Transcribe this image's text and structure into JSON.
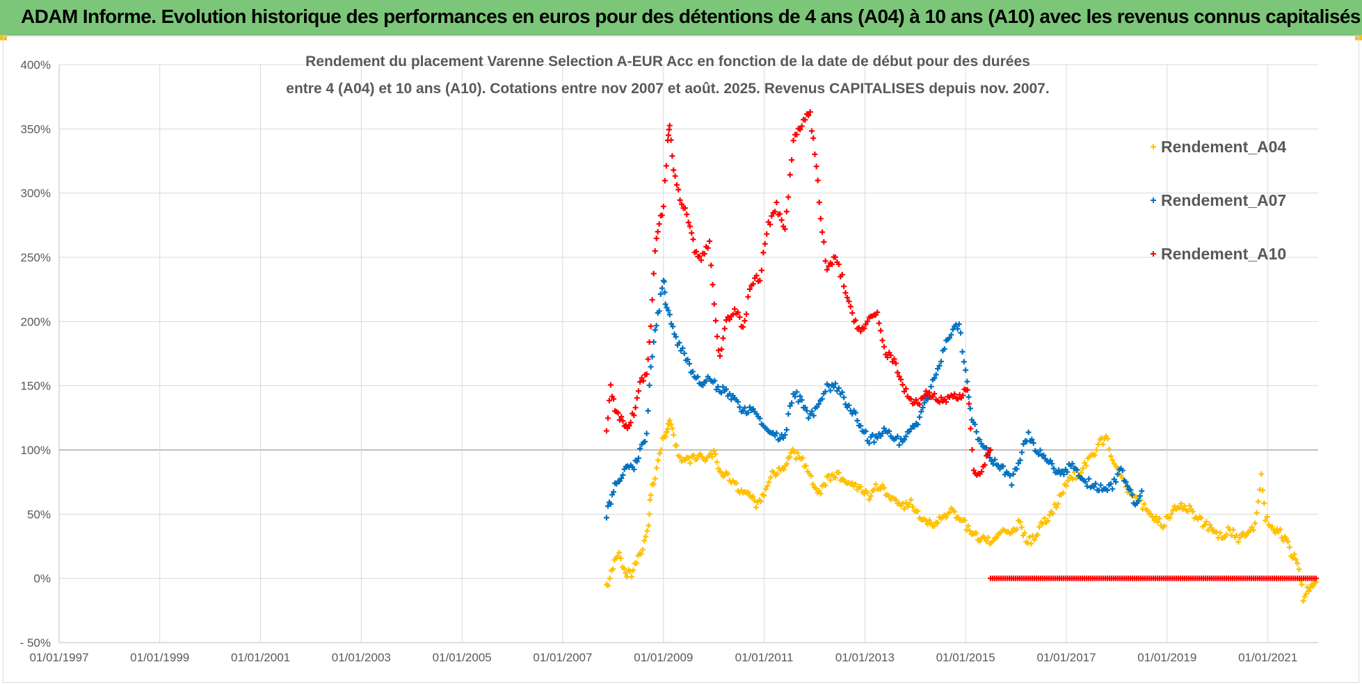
{
  "header": {
    "title": "ADAM Informe. Evolution historique des performances en euros pour des détentions de 4 ans (A04) à 10 ans (A10) avec les revenus connus capitalisés"
  },
  "chart_data": {
    "type": "scatter",
    "title_line1": "Rendement du placement Varenne Selection A-EUR Acc en fonction de la date de début pour des durées",
    "title_line2": "entre 4 (A04) et 10 ans (A10). Cotations entre nov 2007 et août. 2025. Revenus CAPITALISES depuis nov. 2007.",
    "xlim": [
      "1997-01-01",
      "2022-01-01"
    ],
    "ylim": [
      -50,
      400
    ],
    "y_tick_values": [
      -50,
      0,
      50,
      100,
      150,
      200,
      250,
      300,
      350,
      400
    ],
    "y_tick_labels": [
      "- 50%",
      "0%",
      "50%",
      "100%",
      "150%",
      "200%",
      "250%",
      "300%",
      "350%",
      "400%"
    ],
    "x_tick_values": [
      "1997-01-01",
      "1999-01-01",
      "2001-01-01",
      "2003-01-01",
      "2005-01-01",
      "2007-01-01",
      "2009-01-01",
      "2011-01-01",
      "2013-01-01",
      "2015-01-01",
      "2017-01-01",
      "2019-01-01",
      "2021-01-01"
    ],
    "x_tick_labels": [
      "01/01/1997",
      "01/01/1999",
      "01/01/2001",
      "01/01/2003",
      "01/01/2005",
      "01/01/2007",
      "01/01/2009",
      "01/01/2011",
      "01/01/2013",
      "01/01/2015",
      "01/01/2017",
      "01/01/2019",
      "01/01/2021"
    ],
    "grid": true,
    "legend_position": "right",
    "marker": "+",
    "series": [
      {
        "name": "Rendement_A04",
        "color": "#ffc000",
        "points": [
          [
            "2007-11-15",
            -8
          ],
          [
            "2008-01-01",
            10
          ],
          [
            "2008-02-15",
            18
          ],
          [
            "2008-04-01",
            5
          ],
          [
            "2008-05-15",
            2
          ],
          [
            "2008-07-01",
            15
          ],
          [
            "2008-08-15",
            28
          ],
          [
            "2008-09-15",
            40
          ],
          [
            "2008-10-01",
            68
          ],
          [
            "2008-11-01",
            80
          ],
          [
            "2008-12-15",
            103
          ],
          [
            "2009-01-15",
            112
          ],
          [
            "2009-02-01",
            118
          ],
          [
            "2009-02-15",
            125
          ],
          [
            "2009-03-15",
            110
          ],
          [
            "2009-05-01",
            95
          ],
          [
            "2009-07-01",
            92
          ],
          [
            "2009-09-01",
            95
          ],
          [
            "2009-11-01",
            92
          ],
          [
            "2010-01-01",
            98
          ],
          [
            "2010-02-15",
            85
          ],
          [
            "2010-04-01",
            80
          ],
          [
            "2010-06-01",
            72
          ],
          [
            "2010-08-01",
            68
          ],
          [
            "2010-10-01",
            62
          ],
          [
            "2010-11-15",
            57
          ],
          [
            "2011-01-01",
            65
          ],
          [
            "2011-03-01",
            80
          ],
          [
            "2011-05-01",
            84
          ],
          [
            "2011-06-15",
            90
          ],
          [
            "2011-07-15",
            100
          ],
          [
            "2011-09-01",
            95
          ],
          [
            "2011-11-01",
            88
          ],
          [
            "2012-01-01",
            70
          ],
          [
            "2012-02-15",
            68
          ],
          [
            "2012-04-01",
            78
          ],
          [
            "2012-06-01",
            80
          ],
          [
            "2012-08-01",
            78
          ],
          [
            "2012-10-01",
            75
          ],
          [
            "2012-12-01",
            70
          ],
          [
            "2013-02-01",
            62
          ],
          [
            "2013-04-01",
            72
          ],
          [
            "2013-06-01",
            68
          ],
          [
            "2013-08-01",
            60
          ],
          [
            "2013-10-01",
            55
          ],
          [
            "2013-12-01",
            58
          ],
          [
            "2014-02-01",
            50
          ],
          [
            "2014-04-01",
            45
          ],
          [
            "2014-06-01",
            42
          ],
          [
            "2014-08-01",
            50
          ],
          [
            "2014-10-01",
            52
          ],
          [
            "2014-12-01",
            45
          ],
          [
            "2015-02-01",
            38
          ],
          [
            "2015-04-01",
            32
          ],
          [
            "2015-06-01",
            28
          ],
          [
            "2015-08-01",
            32
          ],
          [
            "2015-10-01",
            38
          ],
          [
            "2015-12-01",
            35
          ],
          [
            "2016-02-01",
            45
          ],
          [
            "2016-03-15",
            28
          ],
          [
            "2016-05-01",
            30
          ],
          [
            "2016-07-01",
            42
          ],
          [
            "2016-09-01",
            48
          ],
          [
            "2016-11-01",
            60
          ],
          [
            "2017-01-01",
            75
          ],
          [
            "2017-03-01",
            80
          ],
          [
            "2017-05-01",
            85
          ],
          [
            "2017-07-01",
            95
          ],
          [
            "2017-09-01",
            105
          ],
          [
            "2017-10-15",
            110
          ],
          [
            "2017-12-01",
            92
          ],
          [
            "2018-02-01",
            78
          ],
          [
            "2018-04-01",
            68
          ],
          [
            "2018-06-01",
            60
          ],
          [
            "2018-08-01",
            55
          ],
          [
            "2018-10-01",
            48
          ],
          [
            "2018-12-01",
            42
          ],
          [
            "2019-02-01",
            52
          ],
          [
            "2019-04-01",
            58
          ],
          [
            "2019-06-01",
            55
          ],
          [
            "2019-08-01",
            48
          ],
          [
            "2019-10-01",
            42
          ],
          [
            "2019-12-01",
            38
          ],
          [
            "2020-02-01",
            32
          ],
          [
            "2020-04-01",
            38
          ],
          [
            "2020-06-01",
            30
          ],
          [
            "2020-08-01",
            35
          ],
          [
            "2020-10-01",
            40
          ],
          [
            "2020-11-15",
            80
          ],
          [
            "2020-12-15",
            48
          ],
          [
            "2021-02-01",
            40
          ],
          [
            "2021-04-01",
            35
          ],
          [
            "2021-05-15",
            28
          ],
          [
            "2021-07-01",
            18
          ],
          [
            "2021-08-15",
            10
          ],
          [
            "2021-09-15",
            -15
          ],
          [
            "2021-10-15",
            -8
          ],
          [
            "2021-11-15",
            -5
          ],
          [
            "2021-12-15",
            -3
          ]
        ]
      },
      {
        "name": "Rendement_A07",
        "color": "#0070c0",
        "points": [
          [
            "2007-11-15",
            50
          ],
          [
            "2007-12-15",
            60
          ],
          [
            "2008-01-15",
            75
          ],
          [
            "2008-03-01",
            80
          ],
          [
            "2008-04-15",
            88
          ],
          [
            "2008-06-01",
            85
          ],
          [
            "2008-07-15",
            100
          ],
          [
            "2008-09-01",
            112
          ],
          [
            "2008-10-01",
            165
          ],
          [
            "2008-11-01",
            195
          ],
          [
            "2008-12-01",
            210
          ],
          [
            "2009-01-01",
            235
          ],
          [
            "2009-01-15",
            215
          ],
          [
            "2009-02-15",
            205
          ],
          [
            "2009-04-01",
            185
          ],
          [
            "2009-06-01",
            175
          ],
          [
            "2009-08-01",
            160
          ],
          [
            "2009-10-01",
            150
          ],
          [
            "2009-12-01",
            155
          ],
          [
            "2010-02-01",
            148
          ],
          [
            "2010-04-01",
            145
          ],
          [
            "2010-06-01",
            140
          ],
          [
            "2010-08-01",
            130
          ],
          [
            "2010-10-01",
            132
          ],
          [
            "2010-12-01",
            125
          ],
          [
            "2011-02-01",
            115
          ],
          [
            "2011-04-01",
            110
          ],
          [
            "2011-06-01",
            112
          ],
          [
            "2011-08-01",
            145
          ],
          [
            "2011-10-01",
            138
          ],
          [
            "2011-12-01",
            125
          ],
          [
            "2012-02-01",
            135
          ],
          [
            "2012-04-01",
            148
          ],
          [
            "2012-06-01",
            150
          ],
          [
            "2012-08-01",
            140
          ],
          [
            "2012-10-01",
            130
          ],
          [
            "2012-12-01",
            120
          ],
          [
            "2013-02-01",
            108
          ],
          [
            "2013-04-01",
            110
          ],
          [
            "2013-06-01",
            115
          ],
          [
            "2013-08-01",
            110
          ],
          [
            "2013-10-01",
            105
          ],
          [
            "2013-12-01",
            115
          ],
          [
            "2014-02-01",
            125
          ],
          [
            "2014-04-01",
            140
          ],
          [
            "2014-06-01",
            160
          ],
          [
            "2014-08-01",
            180
          ],
          [
            "2014-10-01",
            192
          ],
          [
            "2014-11-15",
            198
          ],
          [
            "2015-01-01",
            160
          ],
          [
            "2015-02-15",
            125
          ],
          [
            "2015-04-01",
            110
          ],
          [
            "2015-06-01",
            100
          ],
          [
            "2015-08-01",
            90
          ],
          [
            "2015-10-01",
            85
          ],
          [
            "2015-12-01",
            75
          ],
          [
            "2016-02-01",
            95
          ],
          [
            "2016-04-01",
            112
          ],
          [
            "2016-06-01",
            100
          ],
          [
            "2016-08-01",
            95
          ],
          [
            "2016-10-01",
            85
          ],
          [
            "2016-12-01",
            82
          ],
          [
            "2017-02-01",
            88
          ],
          [
            "2017-04-01",
            80
          ],
          [
            "2017-06-01",
            75
          ],
          [
            "2017-08-01",
            72
          ],
          [
            "2017-10-01",
            70
          ],
          [
            "2017-12-01",
            72
          ],
          [
            "2018-02-01",
            85
          ],
          [
            "2018-04-01",
            70
          ],
          [
            "2018-05-15",
            55
          ],
          [
            "2018-07-01",
            68
          ]
        ]
      },
      {
        "name": "Rendement_A10",
        "color": "#ff0000",
        "points": [
          [
            "2007-11-15",
            115
          ],
          [
            "2007-12-15",
            150
          ],
          [
            "2008-01-15",
            130
          ],
          [
            "2008-03-01",
            125
          ],
          [
            "2008-04-15",
            118
          ],
          [
            "2008-06-01",
            130
          ],
          [
            "2008-07-15",
            150
          ],
          [
            "2008-09-01",
            162
          ],
          [
            "2008-10-01",
            195
          ],
          [
            "2008-11-01",
            258
          ],
          [
            "2008-12-01",
            275
          ],
          [
            "2009-01-01",
            290
          ],
          [
            "2009-02-01",
            340
          ],
          [
            "2009-02-15",
            355
          ],
          [
            "2009-03-15",
            320
          ],
          [
            "2009-05-01",
            295
          ],
          [
            "2009-07-01",
            280
          ],
          [
            "2009-08-15",
            255
          ],
          [
            "2009-10-01",
            248
          ],
          [
            "2009-12-01",
            262
          ],
          [
            "2010-01-15",
            200
          ],
          [
            "2010-02-15",
            170
          ],
          [
            "2010-04-01",
            200
          ],
          [
            "2010-06-01",
            210
          ],
          [
            "2010-08-01",
            195
          ],
          [
            "2010-10-01",
            230
          ],
          [
            "2010-12-01",
            235
          ],
          [
            "2011-02-01",
            275
          ],
          [
            "2011-04-01",
            290
          ],
          [
            "2011-06-01",
            270
          ],
          [
            "2011-08-01",
            340
          ],
          [
            "2011-10-01",
            355
          ],
          [
            "2011-12-01",
            362
          ],
          [
            "2012-01-15",
            320
          ],
          [
            "2012-02-15",
            280
          ],
          [
            "2012-04-01",
            240
          ],
          [
            "2012-06-01",
            250
          ],
          [
            "2012-08-01",
            230
          ],
          [
            "2012-10-01",
            205
          ],
          [
            "2012-12-01",
            190
          ],
          [
            "2013-02-01",
            200
          ],
          [
            "2013-04-01",
            205
          ],
          [
            "2013-06-01",
            175
          ],
          [
            "2013-08-01",
            170
          ],
          [
            "2013-10-01",
            150
          ],
          [
            "2013-12-01",
            140
          ],
          [
            "2014-02-01",
            135
          ],
          [
            "2014-04-01",
            145
          ],
          [
            "2014-06-01",
            140
          ],
          [
            "2014-08-01",
            138
          ],
          [
            "2014-10-01",
            142
          ],
          [
            "2014-12-01",
            140
          ],
          [
            "2015-01-15",
            150
          ],
          [
            "2015-03-01",
            85
          ],
          [
            "2015-04-15",
            80
          ],
          [
            "2015-06-01",
            95
          ],
          [
            "2015-07-01",
            100
          ]
        ],
        "zero_run": {
          "x": [
            "2015-07-01",
            "2021-12-31"
          ],
          "y": 0
        }
      }
    ]
  }
}
